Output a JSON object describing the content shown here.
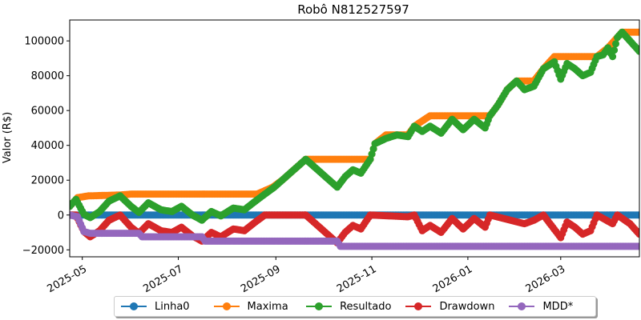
{
  "chart_data": {
    "type": "line",
    "title": "Robô N812527597",
    "xlabel": "",
    "ylabel": "Valor (R$)",
    "xlim": [
      "2025-04-23",
      "2026-04-20"
    ],
    "ylim": [
      -24000,
      112000
    ],
    "x_ticks": [
      "2025-05-01",
      "2025-07-01",
      "2025-09-01",
      "2025-11-01",
      "2026-01-01",
      "2026-03-01"
    ],
    "x_tick_labels": [
      "2025-05",
      "2025-07",
      "2025-09",
      "2025-11",
      "2026-01",
      "2026-03"
    ],
    "y_ticks": [
      -20000,
      0,
      20000,
      40000,
      60000,
      80000,
      100000
    ],
    "y_tick_labels": [
      "−20000",
      "0",
      "20000",
      "40000",
      "60000",
      "80000",
      "100000"
    ],
    "grid": false,
    "legend_position": "bottom",
    "series": [
      {
        "name": "Linha0",
        "color": "#1f77b4",
        "points": [
          [
            "2025-04-23",
            0
          ],
          [
            "2026-04-20",
            0
          ]
        ]
      },
      {
        "name": "Maxima",
        "color": "#ff7f0e",
        "points": [
          [
            "2025-04-23",
            5000
          ],
          [
            "2025-04-28",
            10000
          ],
          [
            "2025-05-05",
            11000
          ],
          [
            "2025-05-25",
            11500
          ],
          [
            "2025-06-01",
            12000
          ],
          [
            "2025-08-20",
            12000
          ],
          [
            "2025-08-25",
            14000
          ],
          [
            "2025-08-30",
            16000
          ],
          [
            "2025-09-05",
            20000
          ],
          [
            "2025-09-10",
            24000
          ],
          [
            "2025-09-15",
            28000
          ],
          [
            "2025-09-20",
            32000
          ],
          [
            "2025-10-31",
            32000
          ],
          [
            "2025-11-03",
            41000
          ],
          [
            "2025-11-10",
            46000
          ],
          [
            "2025-11-24",
            46000
          ],
          [
            "2025-11-28",
            51000
          ],
          [
            "2025-12-08",
            57000
          ],
          [
            "2026-01-15",
            57000
          ],
          [
            "2026-01-20",
            63000
          ],
          [
            "2026-01-26",
            72000
          ],
          [
            "2026-02-01",
            77000
          ],
          [
            "2026-02-12",
            77000
          ],
          [
            "2026-02-18",
            84000
          ],
          [
            "2026-02-25",
            91000
          ],
          [
            "2026-03-24",
            91000
          ],
          [
            "2026-03-31",
            96000
          ],
          [
            "2026-04-06",
            102000
          ],
          [
            "2026-04-09",
            105000
          ],
          [
            "2026-04-20",
            105000
          ]
        ]
      },
      {
        "name": "Resultado",
        "color": "#2ca02c",
        "points": [
          [
            "2025-04-23",
            5000
          ],
          [
            "2025-04-27",
            9000
          ],
          [
            "2025-05-02",
            500
          ],
          [
            "2025-05-06",
            -1500
          ],
          [
            "2025-05-12",
            2000
          ],
          [
            "2025-05-18",
            8000
          ],
          [
            "2025-05-25",
            11000
          ],
          [
            "2025-06-01",
            5000
          ],
          [
            "2025-06-06",
            1500
          ],
          [
            "2025-06-12",
            7000
          ],
          [
            "2025-06-20",
            3000
          ],
          [
            "2025-06-27",
            2000
          ],
          [
            "2025-07-03",
            5000
          ],
          [
            "2025-07-10",
            0
          ],
          [
            "2025-07-16",
            -3000
          ],
          [
            "2025-07-22",
            2000
          ],
          [
            "2025-07-28",
            -500
          ],
          [
            "2025-08-05",
            4000
          ],
          [
            "2025-08-12",
            3000
          ],
          [
            "2025-08-19",
            8000
          ],
          [
            "2025-08-25",
            12000
          ],
          [
            "2025-08-31",
            16000
          ],
          [
            "2025-09-05",
            20000
          ],
          [
            "2025-09-10",
            24000
          ],
          [
            "2025-09-15",
            28000
          ],
          [
            "2025-09-20",
            32000
          ],
          [
            "2025-09-25",
            28000
          ],
          [
            "2025-09-30",
            24000
          ],
          [
            "2025-10-05",
            20000
          ],
          [
            "2025-10-10",
            16000
          ],
          [
            "2025-10-15",
            22000
          ],
          [
            "2025-10-20",
            26000
          ],
          [
            "2025-10-25",
            24000
          ],
          [
            "2025-10-31",
            32000
          ],
          [
            "2025-11-03",
            41000
          ],
          [
            "2025-11-10",
            44000
          ],
          [
            "2025-11-17",
            46000
          ],
          [
            "2025-11-24",
            45000
          ],
          [
            "2025-11-28",
            51000
          ],
          [
            "2025-12-03",
            48000
          ],
          [
            "2025-12-08",
            51000
          ],
          [
            "2025-12-15",
            47000
          ],
          [
            "2025-12-22",
            55000
          ],
          [
            "2025-12-29",
            49000
          ],
          [
            "2026-01-05",
            55000
          ],
          [
            "2026-01-12",
            50000
          ],
          [
            "2026-01-15",
            57000
          ],
          [
            "2026-01-20",
            63000
          ],
          [
            "2026-01-26",
            72000
          ],
          [
            "2026-02-01",
            77000
          ],
          [
            "2026-02-06",
            72000
          ],
          [
            "2026-02-12",
            74000
          ],
          [
            "2026-02-18",
            84000
          ],
          [
            "2026-02-25",
            88000
          ],
          [
            "2026-03-01",
            78000
          ],
          [
            "2026-03-05",
            87000
          ],
          [
            "2026-03-10",
            84000
          ],
          [
            "2026-03-15",
            80000
          ],
          [
            "2026-03-20",
            82000
          ],
          [
            "2026-03-24",
            91000
          ],
          [
            "2026-03-28",
            92000
          ],
          [
            "2026-03-31",
            96000
          ],
          [
            "2026-04-03",
            91000
          ],
          [
            "2026-04-06",
            102000
          ],
          [
            "2026-04-09",
            105000
          ],
          [
            "2026-04-14",
            100000
          ],
          [
            "2026-04-20",
            94000
          ]
        ]
      },
      {
        "name": "Drawdown",
        "color": "#d62728",
        "points": [
          [
            "2025-04-23",
            0
          ],
          [
            "2025-04-27",
            0
          ],
          [
            "2025-05-02",
            -9500
          ],
          [
            "2025-05-06",
            -12500
          ],
          [
            "2025-05-12",
            -9000
          ],
          [
            "2025-05-18",
            -3000
          ],
          [
            "2025-05-25",
            0
          ],
          [
            "2025-06-01",
            -7000
          ],
          [
            "2025-06-06",
            -10500
          ],
          [
            "2025-06-12",
            -5000
          ],
          [
            "2025-06-20",
            -9000
          ],
          [
            "2025-06-27",
            -10000
          ],
          [
            "2025-07-03",
            -7000
          ],
          [
            "2025-07-10",
            -12000
          ],
          [
            "2025-07-16",
            -15000
          ],
          [
            "2025-07-22",
            -10000
          ],
          [
            "2025-07-28",
            -12500
          ],
          [
            "2025-08-05",
            -8000
          ],
          [
            "2025-08-12",
            -9000
          ],
          [
            "2025-08-19",
            -4000
          ],
          [
            "2025-08-25",
            0
          ],
          [
            "2025-09-20",
            0
          ],
          [
            "2025-09-25",
            -4000
          ],
          [
            "2025-09-30",
            -8000
          ],
          [
            "2025-10-05",
            -12000
          ],
          [
            "2025-10-10",
            -16000
          ],
          [
            "2025-10-15",
            -10000
          ],
          [
            "2025-10-20",
            -6000
          ],
          [
            "2025-10-25",
            -8000
          ],
          [
            "2025-10-31",
            0
          ],
          [
            "2025-11-24",
            -1000
          ],
          [
            "2025-11-28",
            0
          ],
          [
            "2025-12-03",
            -9000
          ],
          [
            "2025-12-08",
            -6000
          ],
          [
            "2025-12-15",
            -10000
          ],
          [
            "2025-12-22",
            -2000
          ],
          [
            "2025-12-29",
            -8000
          ],
          [
            "2026-01-05",
            -2000
          ],
          [
            "2026-01-12",
            -7000
          ],
          [
            "2026-01-15",
            0
          ],
          [
            "2026-02-06",
            -5000
          ],
          [
            "2026-02-12",
            -3000
          ],
          [
            "2026-02-18",
            0
          ],
          [
            "2026-03-01",
            -13000
          ],
          [
            "2026-03-05",
            -4000
          ],
          [
            "2026-03-10",
            -7000
          ],
          [
            "2026-03-15",
            -11000
          ],
          [
            "2026-03-20",
            -9000
          ],
          [
            "2026-03-24",
            0
          ],
          [
            "2026-04-03",
            -5000
          ],
          [
            "2026-04-06",
            0
          ],
          [
            "2026-04-14",
            -5000
          ],
          [
            "2026-04-20",
            -11000
          ]
        ]
      },
      {
        "name": "MDD*",
        "color": "#9467bd",
        "points": [
          [
            "2025-04-23",
            0
          ],
          [
            "2025-04-28",
            -1000
          ],
          [
            "2025-05-02",
            -9500
          ],
          [
            "2025-05-06",
            -10500
          ],
          [
            "2025-06-06",
            -10500
          ],
          [
            "2025-06-08",
            -12500
          ],
          [
            "2025-07-16",
            -12500
          ],
          [
            "2025-07-18",
            -15000
          ],
          [
            "2025-10-10",
            -15000
          ],
          [
            "2025-10-12",
            -18000
          ],
          [
            "2026-04-20",
            -18000
          ]
        ]
      }
    ]
  }
}
